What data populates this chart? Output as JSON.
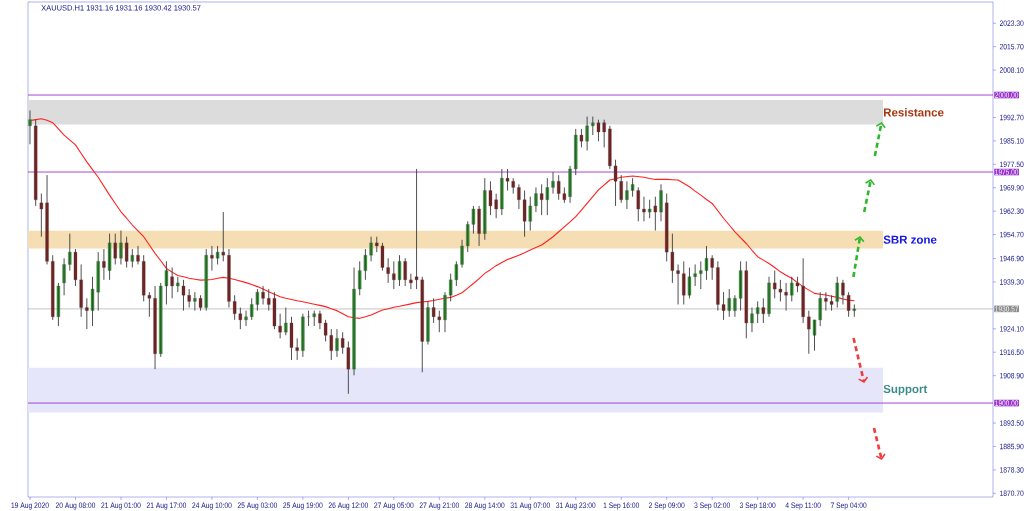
{
  "chart_data": {
    "type": "candlestick",
    "title": "XAUUSD.H1  1931.16 1931.16 1930.42 1930.57",
    "categories": [
      "19 Aug 2020",
      null,
      null,
      null,
      null,
      null,
      null,
      null,
      "20 Aug 08:00",
      null,
      null,
      null,
      null,
      null,
      null,
      null,
      "21 Aug 01:00",
      null,
      null,
      null,
      null,
      null,
      null,
      null,
      "21 Aug 17:00",
      null,
      null,
      null,
      null,
      null,
      null,
      null,
      "24 Aug 10:00",
      null,
      null,
      null,
      null,
      null,
      null,
      null,
      "25 Aug 03:00",
      null,
      null,
      null,
      null,
      null,
      null,
      null,
      "25 Aug 19:00",
      null,
      null,
      null,
      null,
      null,
      null,
      null,
      "26 Aug 12:00",
      null,
      null,
      null,
      null,
      null,
      null,
      null,
      "27 Aug 05:00",
      null,
      null,
      null,
      null,
      null,
      null,
      null,
      "27 Aug 21:00",
      null,
      null,
      null,
      null,
      null,
      null,
      null,
      "28 Aug 14:00",
      null,
      null,
      null,
      null,
      null,
      null,
      null,
      "31 Aug 07:00",
      null,
      null,
      null,
      null,
      null,
      null,
      null,
      "31 Aug 23:00",
      null,
      null,
      null,
      null,
      null,
      null,
      null,
      "1 Sep 16:00",
      null,
      null,
      null,
      null,
      null,
      null,
      null,
      "2 Sep 09:00",
      null,
      null,
      null,
      null,
      null,
      null,
      null,
      "3 Sep 02:00",
      null,
      null,
      null,
      null,
      null,
      null,
      null,
      "3 Sep 18:00",
      null,
      null,
      null,
      null,
      null,
      null,
      null,
      "4 Sep 11:00",
      null,
      null,
      null,
      null,
      null,
      null,
      null,
      "7 Sep 04:00",
      null
    ],
    "ohlc": [
      [
        1990,
        1995,
        1984,
        1992
      ],
      [
        1990,
        1992,
        1964,
        1966
      ],
      [
        1965,
        1968,
        1954,
        1963
      ],
      [
        1965,
        1974,
        1945,
        1946
      ],
      [
        1946,
        1948,
        1927,
        1928
      ],
      [
        1928,
        1939,
        1925,
        1938
      ],
      [
        1939,
        1947,
        1935,
        1945
      ],
      [
        1945,
        1955,
        1943,
        1949
      ],
      [
        1949,
        1950,
        1938,
        1940
      ],
      [
        1940,
        1945,
        1928,
        1931
      ],
      [
        1931,
        1934,
        1924,
        1930
      ],
      [
        1930,
        1941,
        1925,
        1937
      ],
      [
        1936,
        1949,
        1930,
        1946
      ],
      [
        1946,
        1950,
        1940,
        1944
      ],
      [
        1943,
        1955,
        1940,
        1952
      ],
      [
        1952,
        1955,
        1945,
        1947
      ],
      [
        1947,
        1956,
        1945,
        1952
      ],
      [
        1952,
        1954,
        1944,
        1946
      ],
      [
        1946,
        1950,
        1944,
        1948
      ],
      [
        1948,
        1951,
        1945,
        1946
      ],
      [
        1946,
        1948,
        1933,
        1935
      ],
      [
        1935,
        1936,
        1928,
        1934
      ],
      [
        1934,
        1938,
        1911,
        1916
      ],
      [
        1916,
        1939,
        1915,
        1938
      ],
      [
        1938,
        1946,
        1932,
        1943
      ],
      [
        1941,
        1944,
        1934,
        1938
      ],
      [
        1938,
        1941,
        1936,
        1939
      ],
      [
        1938,
        1940,
        1930,
        1935
      ],
      [
        1935,
        1937,
        1931,
        1933
      ],
      [
        1933,
        1936,
        1930,
        1934
      ],
      [
        1934,
        1935,
        1930,
        1931
      ],
      [
        1931,
        1950,
        1930,
        1948
      ],
      [
        1948,
        1951,
        1943,
        1947
      ],
      [
        1947,
        1951,
        1945,
        1949
      ],
      [
        1949,
        1962,
        1946,
        1948
      ],
      [
        1948,
        1950,
        1931,
        1933
      ],
      [
        1933,
        1935,
        1927,
        1929
      ],
      [
        1929,
        1931,
        1924,
        1927
      ],
      [
        1927,
        1930,
        1925,
        1928
      ],
      [
        1928,
        1934,
        1927,
        1932
      ],
      [
        1932,
        1937,
        1930,
        1936
      ],
      [
        1936,
        1938,
        1932,
        1934
      ],
      [
        1934,
        1937,
        1930,
        1932
      ],
      [
        1934,
        1936,
        1924,
        1925
      ],
      [
        1925,
        1929,
        1921,
        1923
      ],
      [
        1923,
        1931,
        1922,
        1926
      ],
      [
        1926,
        1928,
        1914,
        1918
      ],
      [
        1918,
        1921,
        1914,
        1917
      ],
      [
        1917,
        1929,
        1915,
        1928
      ],
      [
        1928,
        1930,
        1925,
        1928
      ],
      [
        1928,
        1930,
        1925,
        1929
      ],
      [
        1929,
        1930,
        1924,
        1926
      ],
      [
        1926,
        1927,
        1920,
        1922
      ],
      [
        1922,
        1924,
        1914,
        1917
      ],
      [
        1917,
        1924,
        1915,
        1921
      ],
      [
        1921,
        1923,
        1916,
        1918
      ],
      [
        1918,
        1920,
        1903,
        1911
      ],
      [
        1911,
        1944,
        1909,
        1937
      ],
      [
        1937,
        1946,
        1935,
        1943
      ],
      [
        1943,
        1950,
        1940,
        1948
      ],
      [
        1948,
        1954,
        1946,
        1952
      ],
      [
        1952,
        1954,
        1949,
        1951
      ],
      [
        1951,
        1952,
        1943,
        1944
      ],
      [
        1944,
        1947,
        1939,
        1942
      ],
      [
        1942,
        1946,
        1937,
        1940
      ],
      [
        1940,
        1948,
        1938,
        1946
      ],
      [
        1946,
        1947,
        1938,
        1940
      ],
      [
        1940,
        1942,
        1937,
        1939
      ],
      [
        1941,
        1976,
        1937,
        1940
      ],
      [
        1940,
        1941,
        1910,
        1920
      ],
      [
        1920,
        1933,
        1919,
        1931
      ],
      [
        1931,
        1934,
        1926,
        1928
      ],
      [
        1928,
        1930,
        1923,
        1927
      ],
      [
        1927,
        1936,
        1923,
        1935
      ],
      [
        1935,
        1942,
        1933,
        1940
      ],
      [
        1940,
        1946,
        1938,
        1945
      ],
      [
        1945,
        1953,
        1944,
        1951
      ],
      [
        1951,
        1959,
        1949,
        1958
      ],
      [
        1958,
        1964,
        1955,
        1963
      ],
      [
        1963,
        1964,
        1951,
        1955
      ],
      [
        1955,
        1973,
        1953,
        1969
      ],
      [
        1969,
        1972,
        1961,
        1964
      ],
      [
        1966,
        1968,
        1960,
        1963
      ],
      [
        1963,
        1976,
        1961,
        1973
      ],
      [
        1973,
        1976,
        1969,
        1972
      ],
      [
        1972,
        1973,
        1968,
        1970
      ],
      [
        1970,
        1971,
        1963,
        1966
      ],
      [
        1966,
        1969,
        1954,
        1959
      ],
      [
        1959,
        1967,
        1956,
        1964
      ],
      [
        1964,
        1970,
        1962,
        1968
      ],
      [
        1968,
        1971,
        1961,
        1966
      ],
      [
        1966,
        1973,
        1961,
        1970
      ],
      [
        1970,
        1975,
        1968,
        1972
      ],
      [
        1972,
        1974,
        1966,
        1968
      ],
      [
        1968,
        1970,
        1965,
        1966
      ],
      [
        1967,
        1977,
        1965,
        1976
      ],
      [
        1976,
        1989,
        1974,
        1987
      ],
      [
        1987,
        1989,
        1983,
        1985
      ],
      [
        1985,
        1993,
        1982,
        1990
      ],
      [
        1990,
        1993,
        1987,
        1991
      ],
      [
        1991,
        1992,
        1985,
        1988
      ],
      [
        1991,
        1992,
        1983,
        1988
      ],
      [
        1989,
        1990,
        1976,
        1977
      ],
      [
        1977,
        1979,
        1964,
        1972
      ],
      [
        1972,
        1974,
        1965,
        1966
      ],
      [
        1966,
        1972,
        1963,
        1969
      ],
      [
        1969,
        1973,
        1967,
        1971
      ],
      [
        1969,
        1970,
        1959,
        1963
      ],
      [
        1963,
        1967,
        1959,
        1962
      ],
      [
        1962,
        1966,
        1960,
        1963
      ],
      [
        1964,
        1967,
        1956,
        1962
      ],
      [
        1962,
        1971,
        1959,
        1969
      ],
      [
        1965,
        1968,
        1946,
        1949
      ],
      [
        1949,
        1955,
        1939,
        1943
      ],
      [
        1943,
        1945,
        1932,
        1942
      ],
      [
        1942,
        1946,
        1932,
        1935
      ],
      [
        1935,
        1944,
        1934,
        1941
      ],
      [
        1941,
        1945,
        1938,
        1942
      ],
      [
        1942,
        1946,
        1937,
        1943
      ],
      [
        1943,
        1951,
        1940,
        1947
      ],
      [
        1947,
        1948,
        1940,
        1944
      ],
      [
        1944,
        1946,
        1930,
        1932
      ],
      [
        1932,
        1936,
        1927,
        1930
      ],
      [
        1930,
        1937,
        1928,
        1934
      ],
      [
        1930,
        1935,
        1928,
        1934
      ],
      [
        1934,
        1946,
        1930,
        1943
      ],
      [
        1943,
        1946,
        1921,
        1926
      ],
      [
        1926,
        1931,
        1923,
        1929
      ],
      [
        1929,
        1933,
        1926,
        1931
      ],
      [
        1931,
        1934,
        1926,
        1929
      ],
      [
        1929,
        1941,
        1928,
        1939
      ],
      [
        1939,
        1943,
        1934,
        1937
      ],
      [
        1937,
        1940,
        1933,
        1936
      ],
      [
        1936,
        1939,
        1930,
        1935
      ],
      [
        1935,
        1941,
        1933,
        1939
      ],
      [
        1939,
        1941,
        1936,
        1938
      ],
      [
        1938,
        1947,
        1926,
        1928
      ],
      [
        1928,
        1930,
        1916,
        1924
      ],
      [
        1922,
        1927,
        1917,
        1927
      ],
      [
        1927,
        1936,
        1925,
        1934
      ],
      [
        1934,
        1936,
        1930,
        1933
      ],
      [
        1933,
        1935,
        1930,
        1932
      ],
      [
        1933,
        1941,
        1931,
        1939
      ],
      [
        1939,
        1940,
        1932,
        1935
      ],
      [
        1935,
        1936,
        1928,
        1930
      ],
      [
        1930,
        1932,
        1928,
        1930.57
      ]
    ],
    "series": [
      {
        "type": "line",
        "color": "#ff2020",
        "values": [
          1991.7,
          1992.0,
          1992.3,
          1991.8,
          1991.0,
          1989.0,
          1987.0,
          1985.4,
          1983.8,
          1981.0,
          1978.3,
          1975.8,
          1973.3,
          1970.4,
          1967.5,
          1964.8,
          1962.1,
          1960.0,
          1957.8,
          1955.9,
          1954.0,
          1951.3,
          1948.6,
          1946.2,
          1943.7,
          1942.5,
          1941.4,
          1941.0,
          1940.5,
          1940.2,
          1939.9,
          1940.0,
          1940.1,
          1940.5,
          1940.8,
          1940.5,
          1940.1,
          1939.6,
          1939.1,
          1938.5,
          1937.8,
          1937.0,
          1936.1,
          1935.3,
          1934.5,
          1934.0,
          1933.6,
          1933.2,
          1932.9,
          1932.5,
          1932.1,
          1931.7,
          1931.3,
          1930.6,
          1930.0,
          1929.0,
          1928.0,
          1927.7,
          1927.5,
          1928.0,
          1928.6,
          1929.4,
          1930.2,
          1930.6,
          1931.1,
          1931.4,
          1931.8,
          1932.2,
          1932.6,
          1932.8,
          1933.0,
          1933.3,
          1933.7,
          1934.0,
          1934.3,
          1935.0,
          1935.8,
          1937.3,
          1938.8,
          1940.4,
          1942.1,
          1943.3,
          1944.6,
          1945.6,
          1946.6,
          1947.3,
          1948.0,
          1948.8,
          1949.7,
          1950.5,
          1951.3,
          1952.6,
          1954.0,
          1955.6,
          1957.2,
          1958.8,
          1960.5,
          1962.6,
          1964.8,
          1967.0,
          1969.2,
          1970.8,
          1972.4,
          1972.8,
          1973.3,
          1973.5,
          1973.7,
          1973.5,
          1973.3,
          1972.9,
          1972.6,
          1972.6,
          1972.6,
          1972.5,
          1972.4,
          1971.3,
          1970.2,
          1968.8,
          1967.5,
          1966.1,
          1964.8,
          1962.4,
          1960.0,
          1957.8,
          1955.6,
          1953.7,
          1951.8,
          1949.6,
          1947.5,
          1946.4,
          1945.3,
          1944.0,
          1942.6,
          1941.5,
          1940.5,
          1939.1,
          1937.8,
          1936.7,
          1935.6,
          1935.3,
          1935.1,
          1934.7,
          1934.3,
          1933.8,
          1933.4,
          1933.2
        ]
      }
    ],
    "ylim": [
      1869.5,
      2030.2
    ],
    "yticks": [
      {
        "value": 2023.3,
        "label": "2023.30"
      },
      {
        "value": 2015.7,
        "label": "2015.70"
      },
      {
        "value": 2008.1,
        "label": "2008.10"
      },
      {
        "value": 1992.7,
        "label": "1992.70"
      },
      {
        "value": 1985.1,
        "label": "1985.10"
      },
      {
        "value": 1977.5,
        "label": "1977.50"
      },
      {
        "value": 1969.9,
        "label": "1969.90"
      },
      {
        "value": 1962.3,
        "label": "1962.30"
      },
      {
        "value": 1954.7,
        "label": "1954.70"
      },
      {
        "value": 1946.9,
        "label": "1946.90"
      },
      {
        "value": 1939.3,
        "label": "1939.30"
      },
      {
        "value": 1924.1,
        "label": "1924.10"
      },
      {
        "value": 1916.5,
        "label": "1916.50"
      },
      {
        "value": 1908.9,
        "label": "1908.90"
      },
      {
        "value": 1893.5,
        "label": "1893.50"
      },
      {
        "value": 1885.9,
        "label": "1885.90"
      },
      {
        "value": 1878.3,
        "label": "1878.30"
      },
      {
        "value": 1870.7,
        "label": "1870.70"
      }
    ],
    "ref_lines": [
      {
        "axis": "y",
        "value": 2000,
        "label": "2000.00",
        "color": "#9933cc"
      },
      {
        "axis": "y",
        "value": 1975,
        "label": "1975.00",
        "color": "#9933cc"
      },
      {
        "axis": "y",
        "value": 1900,
        "label": "1900.00",
        "color": "#9933cc"
      },
      {
        "axis": "y",
        "value": 1930.57,
        "label": "1930.57",
        "color": "#8c8c8c"
      }
    ],
    "bands": [
      {
        "axis": "y",
        "from": 1990.4,
        "to": 1998.4,
        "label": "Resistance",
        "color": "#dcdcdc"
      },
      {
        "axis": "y",
        "from": 1950.2,
        "to": 1955.9,
        "label": "SBR zone",
        "color": "#f5deb3"
      },
      {
        "axis": "y",
        "from": 1896.9,
        "to": 1911.5,
        "label": "Support",
        "color": "#e6e6fa"
      }
    ]
  }
}
